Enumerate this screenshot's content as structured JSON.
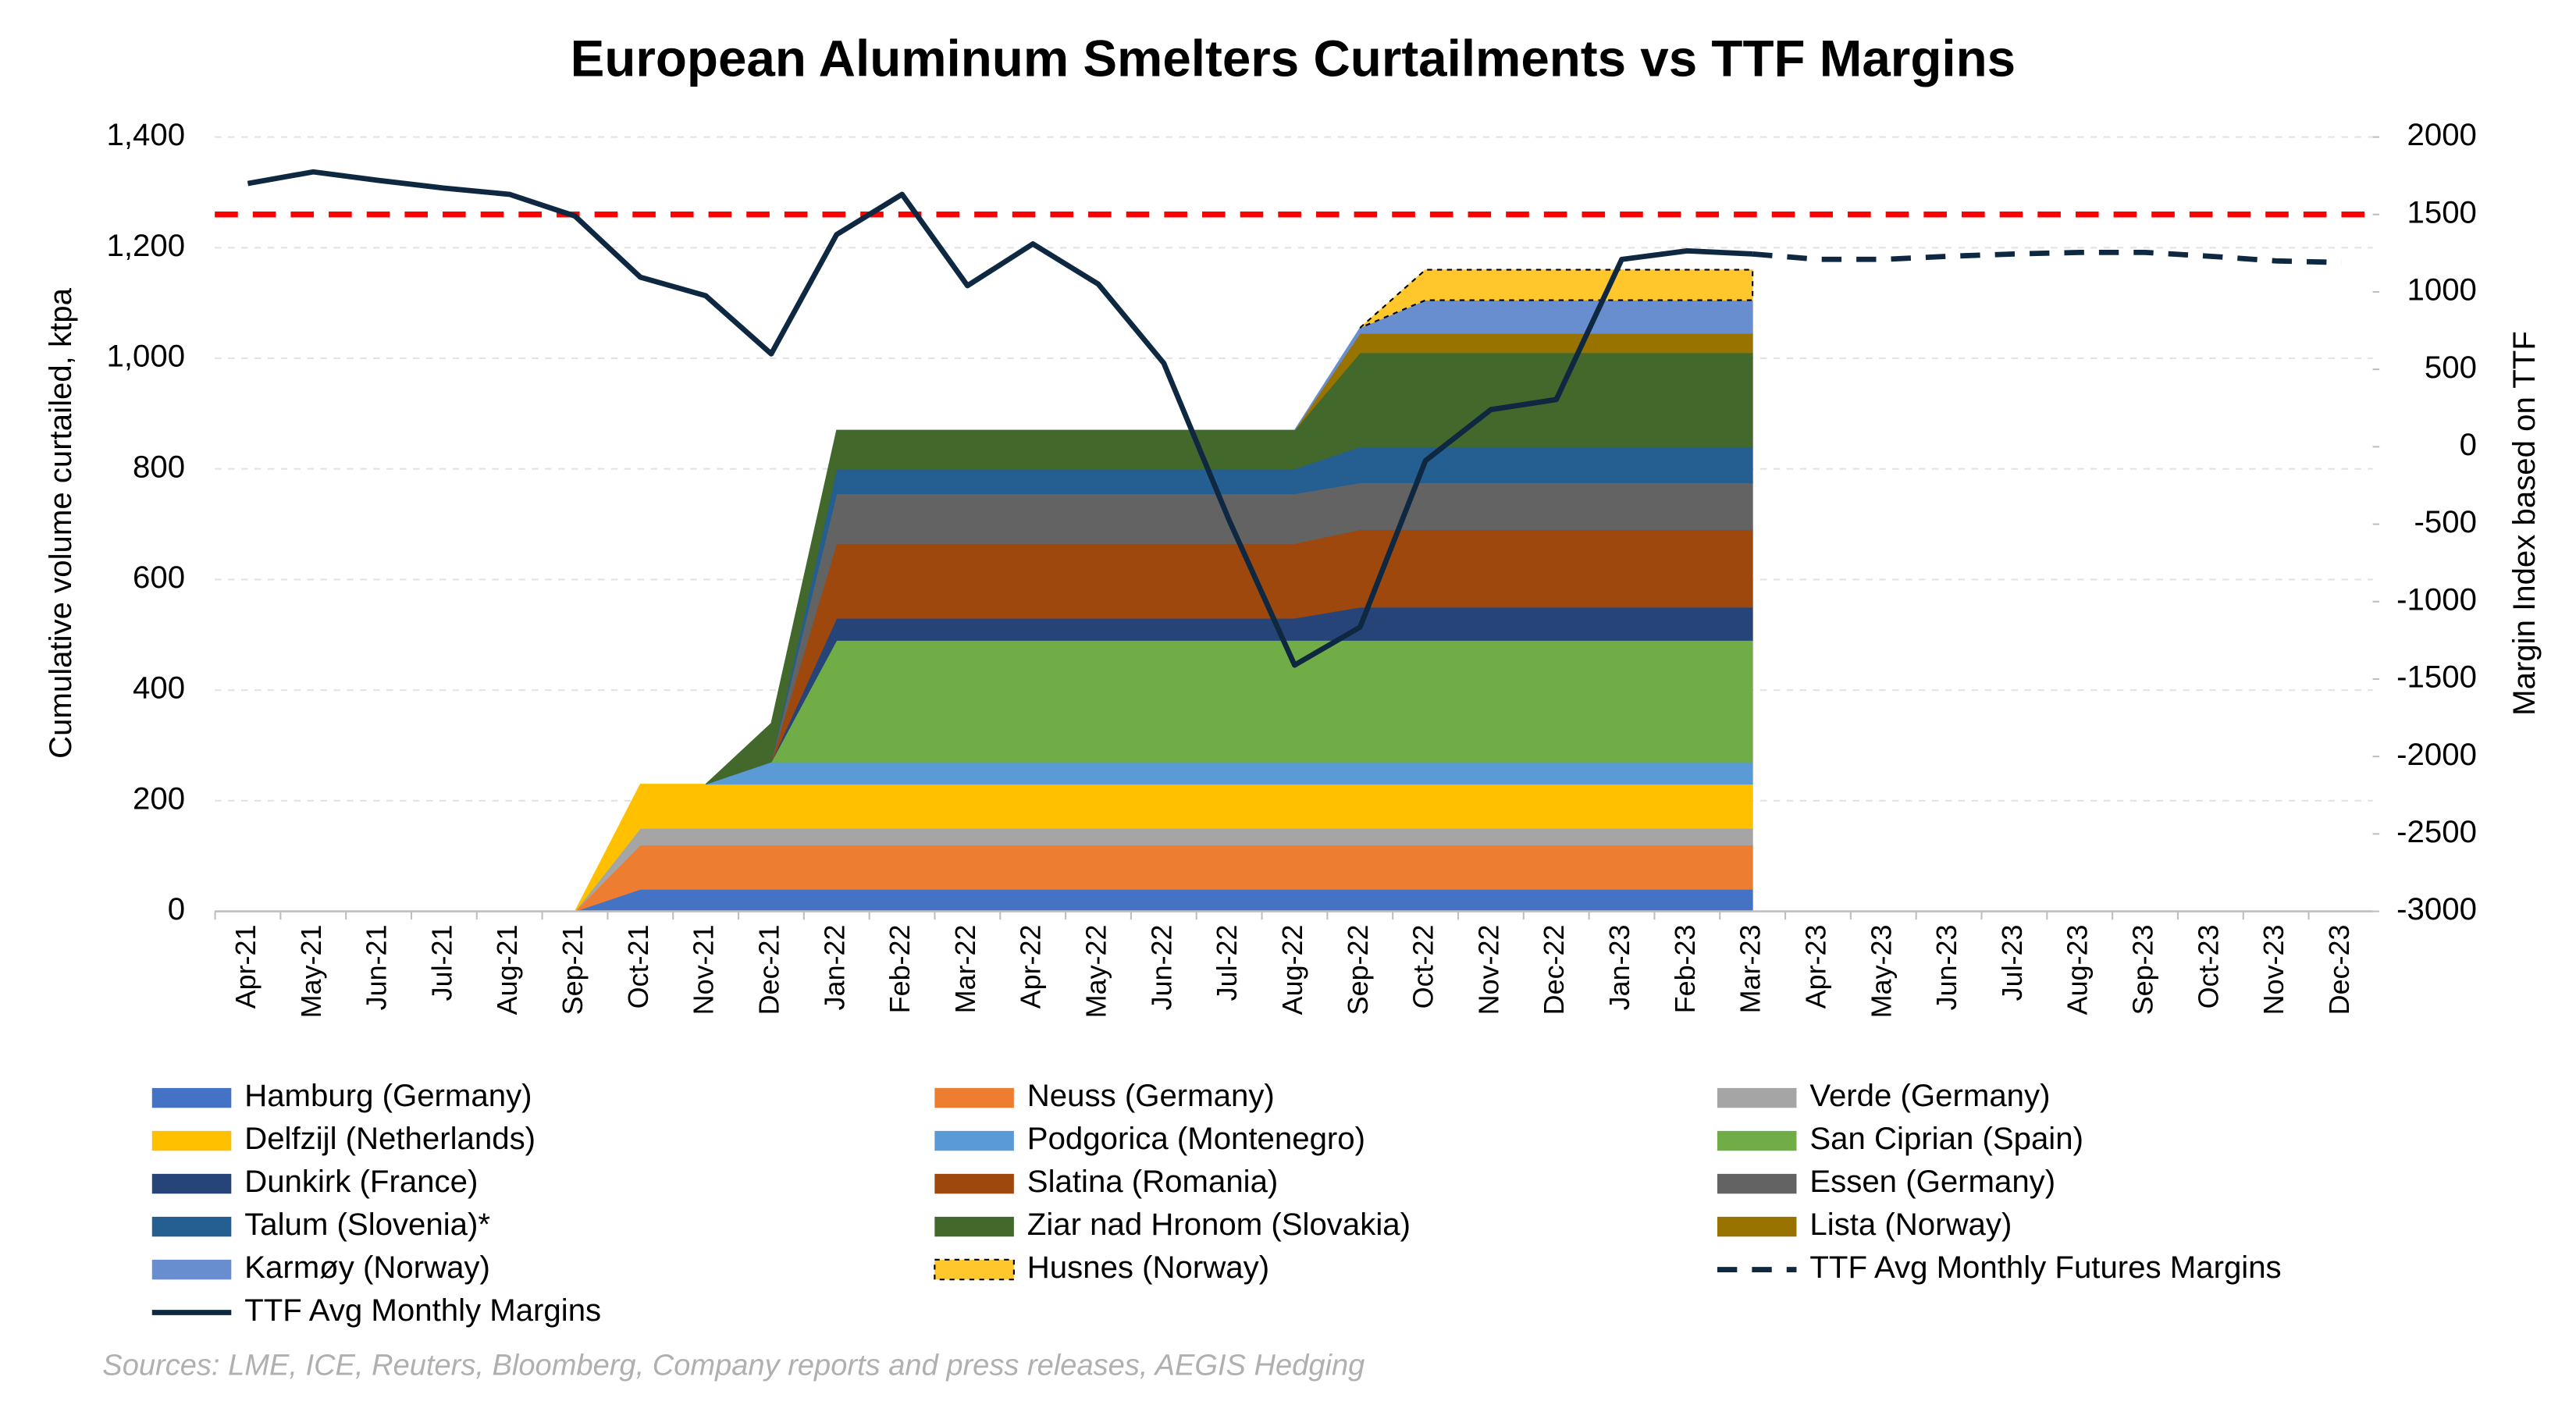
{
  "chart_data": {
    "type": "stacked_area_line",
    "title": "European Aluminum Smelters Curtailments vs TTF Margins",
    "ylabel": "Cumulative volume curtailed, ktpa",
    "y2label": "Margin Index based on TTF",
    "source": "Sources: LME, ICE, Reuters, Bloomberg, Company reports and press releases, AEGIS Hedging",
    "categories": [
      "Apr-21",
      "May-21",
      "Jun-21",
      "Jul-21",
      "Aug-21",
      "Sep-21",
      "Oct-21",
      "Nov-21",
      "Dec-21",
      "Jan-22",
      "Feb-22",
      "Mar-22",
      "Apr-22",
      "May-22",
      "Jun-22",
      "Jul-22",
      "Aug-22",
      "Sep-22",
      "Oct-22",
      "Nov-22",
      "Dec-22",
      "Jan-23",
      "Feb-23",
      "Mar-23",
      "Apr-23",
      "May-23",
      "Jun-23",
      "Jul-23",
      "Aug-23",
      "Sep-23",
      "Oct-23",
      "Nov-23",
      "Dec-23"
    ],
    "ylim": [
      0,
      1400
    ],
    "yticks": [
      0,
      200,
      400,
      600,
      800,
      {
        "value": 1000,
        "label": "1,000"
      },
      {
        "value": 1200,
        "label": "1,200"
      },
      {
        "value": 1400,
        "label": "1,400"
      }
    ],
    "y2lim": [
      -3000,
      2000
    ],
    "y2ticks": [
      -3000,
      -2500,
      -2000,
      -1500,
      -1000,
      -500,
      0,
      500,
      1000,
      1500,
      2000
    ],
    "grid": true,
    "reference_line": {
      "value": 1500,
      "axis": "y2",
      "color": "#ff0000"
    },
    "series": [
      {
        "name": "Hamburg (Germany)",
        "color": "#4472c4",
        "values": [
          null,
          null,
          null,
          null,
          null,
          0,
          40,
          40,
          40,
          40,
          40,
          40,
          40,
          40,
          40,
          40,
          40,
          40,
          40,
          40,
          40,
          40,
          40,
          40,
          null,
          null,
          null,
          null,
          null,
          null,
          null,
          null,
          null
        ]
      },
      {
        "name": "Neuss (Germany)",
        "color": "#ed7d31",
        "values": [
          null,
          null,
          null,
          null,
          null,
          0,
          80,
          80,
          80,
          80,
          80,
          80,
          80,
          80,
          80,
          80,
          80,
          80,
          80,
          80,
          80,
          80,
          80,
          80,
          null,
          null,
          null,
          null,
          null,
          null,
          null,
          null,
          null
        ]
      },
      {
        "name": "Verde (Germany)",
        "color": "#a5a5a5",
        "values": [
          null,
          null,
          null,
          null,
          null,
          0,
          30,
          30,
          30,
          30,
          30,
          30,
          30,
          30,
          30,
          30,
          30,
          30,
          30,
          30,
          30,
          30,
          30,
          30,
          null,
          null,
          null,
          null,
          null,
          null,
          null,
          null,
          null
        ]
      },
      {
        "name": "Delfzijl (Netherlands)",
        "color": "#ffc000",
        "values": [
          null,
          null,
          null,
          null,
          null,
          0,
          80,
          80,
          80,
          80,
          80,
          80,
          80,
          80,
          80,
          80,
          80,
          80,
          80,
          80,
          80,
          80,
          80,
          80,
          null,
          null,
          null,
          null,
          null,
          null,
          null,
          null,
          null
        ]
      },
      {
        "name": "Podgorica (Montenegro)",
        "color": "#5b9bd5",
        "values": [
          null,
          null,
          null,
          null,
          null,
          null,
          null,
          0,
          40,
          40,
          40,
          40,
          40,
          40,
          40,
          40,
          40,
          40,
          40,
          40,
          40,
          40,
          40,
          40,
          null,
          null,
          null,
          null,
          null,
          null,
          null,
          null,
          null
        ]
      },
      {
        "name": "San Ciprian (Spain)",
        "color": "#70ad47",
        "values": [
          null,
          null,
          null,
          null,
          null,
          null,
          null,
          null,
          0,
          220,
          220,
          220,
          220,
          220,
          220,
          220,
          220,
          220,
          220,
          220,
          220,
          220,
          220,
          220,
          null,
          null,
          null,
          null,
          null,
          null,
          null,
          null,
          null
        ]
      },
      {
        "name": "Dunkirk (France)",
        "color": "#264478",
        "values": [
          null,
          null,
          null,
          null,
          null,
          null,
          null,
          null,
          0,
          40,
          40,
          40,
          40,
          40,
          40,
          40,
          40,
          60,
          60,
          60,
          60,
          60,
          60,
          60,
          null,
          null,
          null,
          null,
          null,
          null,
          null,
          null,
          null
        ]
      },
      {
        "name": "Slatina (Romania)",
        "color": "#9e480e",
        "values": [
          null,
          null,
          null,
          null,
          null,
          null,
          null,
          null,
          0,
          135,
          135,
          135,
          135,
          135,
          135,
          135,
          135,
          140,
          140,
          140,
          140,
          140,
          140,
          140,
          null,
          null,
          null,
          null,
          null,
          null,
          null,
          null,
          null
        ]
      },
      {
        "name": "Essen (Germany)",
        "color": "#636363",
        "values": [
          null,
          null,
          null,
          null,
          null,
          null,
          null,
          null,
          0,
          90,
          90,
          90,
          90,
          90,
          90,
          90,
          90,
          85,
          85,
          85,
          85,
          85,
          85,
          85,
          null,
          null,
          null,
          null,
          null,
          null,
          null,
          null,
          null
        ]
      },
      {
        "name": "Talum (Slovenia)*",
        "color": "#255e91",
        "values": [
          null,
          null,
          null,
          null,
          null,
          null,
          null,
          null,
          0,
          45,
          45,
          45,
          45,
          45,
          45,
          45,
          45,
          65,
          65,
          65,
          65,
          65,
          65,
          65,
          null,
          null,
          null,
          null,
          null,
          null,
          null,
          null,
          null
        ]
      },
      {
        "name": "Ziar nad Hronom (Slovakia)",
        "color": "#43682b",
        "values": [
          null,
          null,
          null,
          null,
          null,
          null,
          null,
          0,
          70,
          70,
          70,
          70,
          70,
          70,
          70,
          70,
          70,
          170,
          170,
          170,
          170,
          170,
          170,
          170,
          null,
          null,
          null,
          null,
          null,
          null,
          null,
          null,
          null
        ]
      },
      {
        "name": "Lista (Norway)",
        "color": "#997300",
        "values": [
          null,
          null,
          null,
          null,
          null,
          null,
          null,
          null,
          null,
          null,
          null,
          null,
          null,
          null,
          null,
          null,
          0,
          35,
          35,
          35,
          35,
          35,
          35,
          35,
          null,
          null,
          null,
          null,
          null,
          null,
          null,
          null,
          null
        ]
      },
      {
        "name": "Karmøy (Norway)",
        "color": "#698ed0",
        "values": [
          null,
          null,
          null,
          null,
          null,
          null,
          null,
          null,
          null,
          null,
          null,
          null,
          null,
          null,
          null,
          null,
          0,
          10,
          60,
          60,
          60,
          60,
          60,
          60,
          null,
          null,
          null,
          null,
          null,
          null,
          null,
          null,
          null
        ]
      },
      {
        "name": "Husnes (Norway)",
        "color": "#ffc72c",
        "border": "dashed",
        "values": [
          null,
          null,
          null,
          null,
          null,
          null,
          null,
          null,
          null,
          null,
          null,
          null,
          null,
          null,
          null,
          null,
          null,
          0,
          55,
          55,
          55,
          55,
          55,
          55,
          null,
          null,
          null,
          null,
          null,
          null,
          null,
          null,
          null
        ]
      },
      {
        "name": "TTF Avg Monthly Futures Margins",
        "color": "#0e2841",
        "axis": "y2",
        "kind": "line",
        "style": "dashed",
        "values": [
          null,
          null,
          null,
          null,
          null,
          null,
          null,
          null,
          null,
          null,
          null,
          null,
          null,
          null,
          null,
          null,
          null,
          null,
          null,
          null,
          null,
          null,
          null,
          1245,
          1210,
          1210,
          1230,
          1245,
          1255,
          1255,
          1230,
          1200,
          1190
        ]
      },
      {
        "name": "TTF Avg Monthly Margins",
        "color": "#0e2841",
        "axis": "y2",
        "kind": "line",
        "style": "solid",
        "values": [
          1700,
          1775,
          1720,
          1670,
          1630,
          1490,
          1095,
          975,
          600,
          1370,
          1630,
          1040,
          1310,
          1050,
          540,
          -475,
          -1410,
          -1165,
          -90,
          240,
          305,
          1210,
          1265,
          1245,
          null,
          null,
          null,
          null,
          null,
          null,
          null,
          null,
          null
        ]
      }
    ]
  }
}
